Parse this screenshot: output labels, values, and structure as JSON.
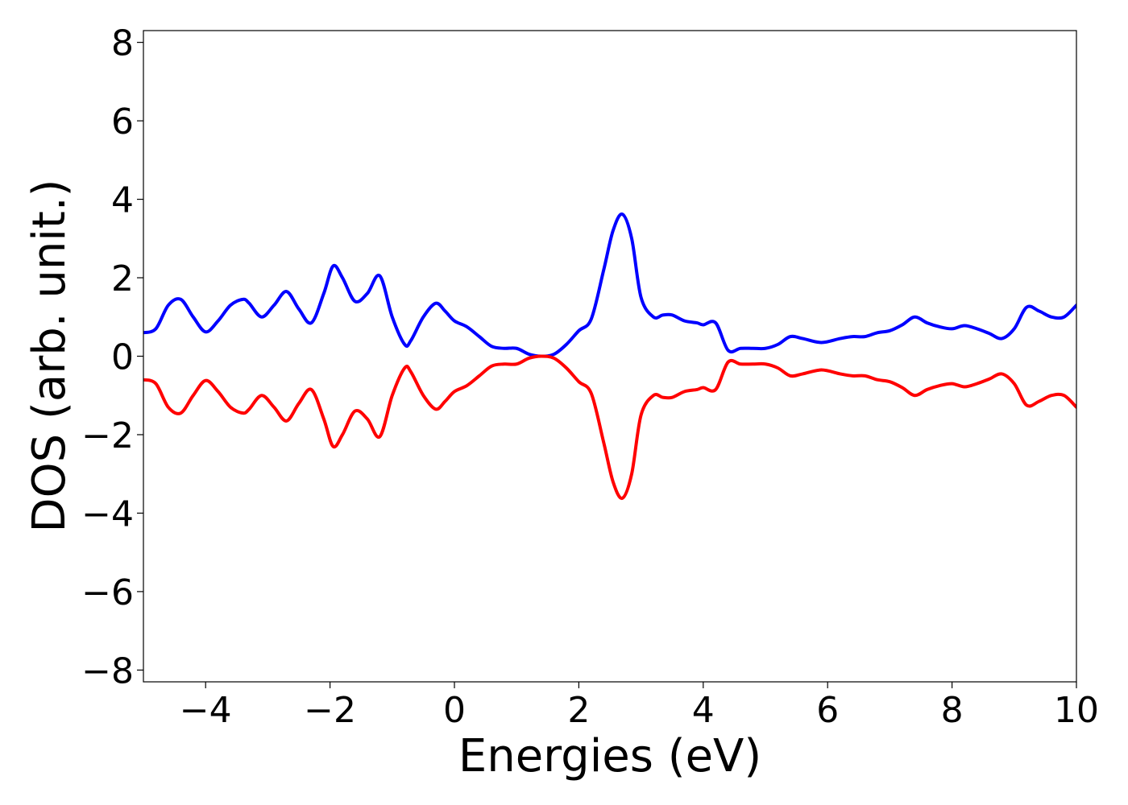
{
  "chart_data": {
    "type": "line",
    "xlabel": "Energies (eV)",
    "ylabel": "DOS (arb. unit.)",
    "xlim": [
      -5,
      10
    ],
    "ylim": [
      -8.3,
      8.3
    ],
    "xticks": [
      -4,
      -2,
      0,
      2,
      4,
      6,
      8,
      10
    ],
    "xtick_labels": [
      "−4",
      "−2",
      "0",
      "2",
      "4",
      "6",
      "8",
      "10"
    ],
    "yticks": [
      8,
      6,
      4,
      2,
      0,
      -2,
      -4,
      -6,
      -8
    ],
    "ytick_labels": [
      "8",
      "6",
      "4",
      "2",
      "0",
      "−2",
      "−4",
      "−6",
      "−8"
    ],
    "grid": false,
    "series": [
      {
        "color": "#0000ff",
        "x": [
          -5.0,
          -4.8,
          -4.6,
          -4.4,
          -4.2,
          -4.0,
          -3.8,
          -3.6,
          -3.4,
          -3.3,
          -3.1,
          -2.9,
          -2.7,
          -2.5,
          -2.3,
          -2.1,
          -1.95,
          -1.8,
          -1.6,
          -1.4,
          -1.2,
          -1.0,
          -0.8,
          -0.7,
          -0.5,
          -0.3,
          -0.15,
          0.0,
          0.2,
          0.4,
          0.6,
          0.8,
          1.0,
          1.2,
          1.4,
          1.6,
          1.8,
          2.0,
          2.2,
          2.4,
          2.55,
          2.7,
          2.85,
          3.0,
          3.2,
          3.35,
          3.5,
          3.7,
          3.9,
          4.0,
          4.2,
          4.4,
          4.6,
          4.8,
          5.0,
          5.2,
          5.4,
          5.6,
          5.9,
          6.2,
          6.4,
          6.6,
          6.8,
          7.0,
          7.2,
          7.4,
          7.6,
          7.8,
          8.0,
          8.2,
          8.4,
          8.6,
          8.8,
          9.0,
          9.2,
          9.4,
          9.6,
          9.8,
          10.0
        ],
        "y": [
          0.6,
          0.7,
          1.3,
          1.45,
          1.0,
          0.62,
          0.9,
          1.3,
          1.45,
          1.35,
          1.0,
          1.3,
          1.65,
          1.2,
          0.85,
          1.6,
          2.3,
          2.0,
          1.4,
          1.6,
          2.05,
          1.0,
          0.3,
          0.4,
          1.0,
          1.35,
          1.15,
          0.9,
          0.75,
          0.5,
          0.25,
          0.2,
          0.2,
          0.05,
          0.0,
          0.05,
          0.3,
          0.65,
          0.95,
          2.2,
          3.2,
          3.62,
          3.0,
          1.5,
          1.0,
          1.05,
          1.05,
          0.9,
          0.85,
          0.8,
          0.85,
          0.15,
          0.2,
          0.2,
          0.2,
          0.3,
          0.5,
          0.45,
          0.35,
          0.45,
          0.5,
          0.5,
          0.6,
          0.65,
          0.8,
          1.0,
          0.85,
          0.75,
          0.7,
          0.78,
          0.7,
          0.58,
          0.45,
          0.7,
          1.25,
          1.15,
          1.0,
          1.0,
          1.3
        ]
      },
      {
        "color": "#ff0000",
        "x": [
          -5.0,
          -4.8,
          -4.6,
          -4.4,
          -4.2,
          -4.0,
          -3.8,
          -3.6,
          -3.4,
          -3.3,
          -3.1,
          -2.9,
          -2.7,
          -2.5,
          -2.3,
          -2.1,
          -1.95,
          -1.8,
          -1.6,
          -1.4,
          -1.2,
          -1.0,
          -0.8,
          -0.7,
          -0.5,
          -0.3,
          -0.15,
          0.0,
          0.2,
          0.4,
          0.6,
          0.8,
          1.0,
          1.2,
          1.4,
          1.6,
          1.8,
          2.0,
          2.2,
          2.4,
          2.55,
          2.7,
          2.85,
          3.0,
          3.2,
          3.35,
          3.5,
          3.7,
          3.9,
          4.0,
          4.2,
          4.4,
          4.6,
          4.8,
          5.0,
          5.2,
          5.4,
          5.6,
          5.9,
          6.2,
          6.4,
          6.6,
          6.8,
          7.0,
          7.2,
          7.4,
          7.6,
          7.8,
          8.0,
          8.2,
          8.4,
          8.6,
          8.8,
          9.0,
          9.2,
          9.4,
          9.6,
          9.8,
          10.0
        ],
        "y": [
          -0.6,
          -0.7,
          -1.3,
          -1.45,
          -1.0,
          -0.62,
          -0.9,
          -1.3,
          -1.45,
          -1.35,
          -1.0,
          -1.3,
          -1.65,
          -1.2,
          -0.85,
          -1.6,
          -2.3,
          -2.0,
          -1.4,
          -1.6,
          -2.05,
          -1.0,
          -0.3,
          -0.4,
          -1.0,
          -1.35,
          -1.15,
          -0.9,
          -0.75,
          -0.5,
          -0.25,
          -0.2,
          -0.2,
          -0.05,
          0.0,
          -0.05,
          -0.3,
          -0.65,
          -0.95,
          -2.2,
          -3.2,
          -3.62,
          -3.0,
          -1.5,
          -1.0,
          -1.05,
          -1.05,
          -0.9,
          -0.85,
          -0.8,
          -0.85,
          -0.15,
          -0.2,
          -0.2,
          -0.2,
          -0.3,
          -0.5,
          -0.45,
          -0.35,
          -0.45,
          -0.5,
          -0.5,
          -0.6,
          -0.65,
          -0.8,
          -1.0,
          -0.85,
          -0.75,
          -0.7,
          -0.78,
          -0.7,
          -0.58,
          -0.45,
          -0.7,
          -1.25,
          -1.15,
          -1.0,
          -1.0,
          -1.3
        ]
      }
    ]
  }
}
